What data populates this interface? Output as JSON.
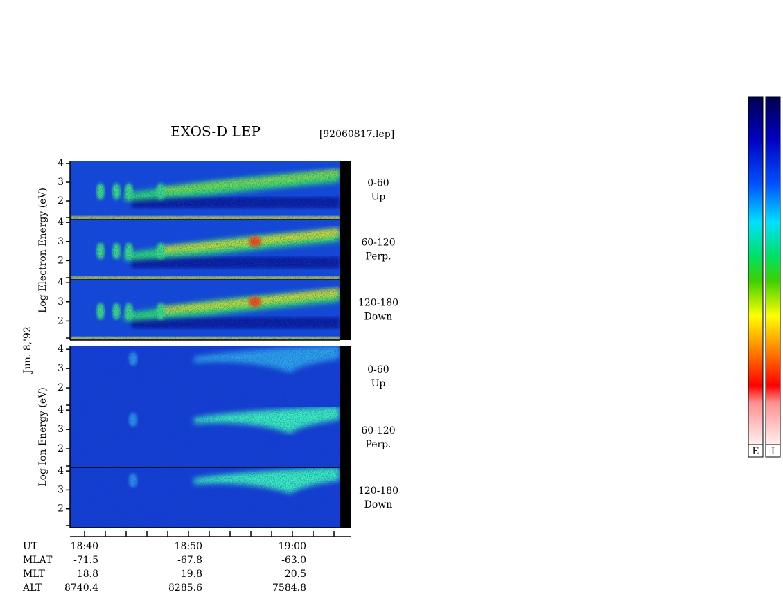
{
  "header": {
    "title": "EXOS-D LEP",
    "file": "[92060817.lep]"
  },
  "date": "Jun. 8,'92",
  "groups": [
    {
      "axis_label": "Log  Electron  Energy (eV)",
      "panels": [
        {
          "ylim": [
            1,
            4.15
          ],
          "yticks": [
            2,
            3,
            4
          ],
          "labels": [
            "0-60",
            "Up"
          ]
        },
        {
          "ylim": [
            1,
            4.15
          ],
          "yticks": [
            2,
            3,
            4
          ],
          "labels": [
            "60-120",
            "Perp."
          ]
        },
        {
          "ylim": [
            1,
            4.15
          ],
          "yticks": [
            2,
            3,
            4
          ],
          "labels": [
            "120-180",
            "Down"
          ]
        }
      ]
    },
    {
      "axis_label": "Log  Ion  Energy (eV)",
      "panels": [
        {
          "ylim": [
            1,
            4.15
          ],
          "yticks": [
            2,
            3,
            4
          ],
          "labels": [
            "0-60",
            "Up"
          ]
        },
        {
          "ylim": [
            1,
            4.15
          ],
          "yticks": [
            2,
            3,
            4
          ],
          "labels": [
            "60-120",
            "Perp."
          ]
        },
        {
          "ylim": [
            1,
            4.15
          ],
          "yticks": [
            2,
            3,
            4
          ],
          "labels": [
            "120-180",
            "Down"
          ]
        }
      ]
    }
  ],
  "table": {
    "rows": [
      [
        "UT",
        "18:40",
        "18:50",
        "19:00"
      ],
      [
        "MLAT",
        "-71.5",
        "-67.8",
        "-63.0"
      ],
      [
        "MLT",
        "18.8",
        "19.8",
        "20.5"
      ],
      [
        "ALT",
        "8740.4",
        "8285.6",
        "7584.8"
      ]
    ]
  },
  "colorbars": [
    "E",
    "I"
  ]
}
